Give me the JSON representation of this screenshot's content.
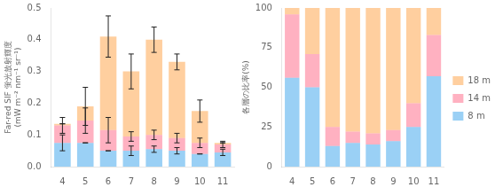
{
  "chart_data": [
    {
      "type": "bar",
      "stacked": true,
      "grid": false,
      "legend": false,
      "categories": [
        "4",
        "5",
        "6",
        "7",
        "8",
        "9",
        "10",
        "11"
      ],
      "ylabel": "Far-red SIF 蛍光放射輝度\n(mW m⁻² nm⁻¹ sr⁻¹)",
      "ylim": [
        0.0,
        0.5
      ],
      "yticks": [
        {
          "value": 0.0,
          "label": "0.0"
        },
        0.1,
        0.2,
        0.3,
        0.4,
        0.5
      ],
      "series": [
        {
          "name": "8 m",
          "values": [
            0.075,
            0.075,
            0.05,
            0.05,
            0.055,
            0.05,
            0.04,
            0.045
          ],
          "errors": [
            0.025,
            0.0,
            0.0,
            0.015,
            0.01,
            0.01,
            0.0,
            0.01
          ]
        },
        {
          "name": "14 m",
          "values": [
            0.055,
            0.07,
            0.065,
            0.045,
            0.045,
            0.04,
            0.035,
            0.025
          ],
          "errors": [
            0.025,
            0.04,
            0.04,
            0.015,
            0.015,
            0.015,
            0.015,
            0.01
          ]
        },
        {
          "name": "18 m",
          "values": [
            0.005,
            0.045,
            0.295,
            0.205,
            0.3,
            0.24,
            0.1,
            0.005
          ],
          "errors": [
            0.0,
            0.06,
            0.065,
            0.055,
            0.04,
            0.025,
            0.035,
            0.0
          ]
        }
      ]
    },
    {
      "type": "bar",
      "stacked": true,
      "grid": false,
      "legend": "right",
      "categories": [
        "4",
        "5",
        "6",
        "7",
        "8",
        "9",
        "10",
        "11"
      ],
      "ylabel": "各層の比率(%)",
      "ylim": [
        0,
        100
      ],
      "yticks": [
        0,
        25,
        50,
        75,
        100
      ],
      "series": [
        {
          "name": "8 m",
          "values": [
            56,
            50,
            13,
            15,
            14,
            16,
            25,
            57
          ]
        },
        {
          "name": "14 m",
          "values": [
            40,
            21,
            12,
            7,
            7,
            7,
            15,
            26
          ]
        },
        {
          "name": "18 m",
          "values": [
            4,
            29,
            75,
            78,
            79,
            77,
            60,
            17
          ]
        }
      ]
    }
  ]
}
